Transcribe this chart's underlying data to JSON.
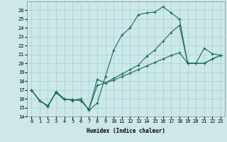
{
  "xlabel": "Humidex (Indice chaleur)",
  "xlim": [
    -0.5,
    23.5
  ],
  "ylim": [
    14,
    27
  ],
  "yticks": [
    14,
    15,
    16,
    17,
    18,
    19,
    20,
    21,
    22,
    23,
    24,
    25,
    26
  ],
  "xticks": [
    0,
    1,
    2,
    3,
    4,
    5,
    6,
    7,
    8,
    9,
    10,
    11,
    12,
    13,
    14,
    15,
    16,
    17,
    18,
    19,
    20,
    21,
    22,
    23
  ],
  "background_color": "#cce8e8",
  "grid_color": "#aacece",
  "line_color": "#1a6b5a",
  "line1_x": [
    0,
    1,
    2,
    3,
    4,
    5,
    6,
    7,
    8,
    9,
    10,
    11,
    12,
    13,
    14,
    15,
    16,
    17,
    18,
    19,
    20,
    21,
    22,
    23
  ],
  "line1_y": [
    17.0,
    15.8,
    15.1,
    16.8,
    16.0,
    15.8,
    16.0,
    14.7,
    15.5,
    18.5,
    21.5,
    23.2,
    24.0,
    25.5,
    25.7,
    25.8,
    26.4,
    25.7,
    25.0,
    20.0,
    20.0,
    21.7,
    21.1,
    20.9
  ],
  "line2_x": [
    0,
    1,
    2,
    3,
    4,
    5,
    6,
    7,
    8,
    9,
    10,
    11,
    12,
    13,
    14,
    15,
    16,
    17,
    18,
    19,
    20,
    21,
    22,
    23
  ],
  "line2_y": [
    17.0,
    15.8,
    15.2,
    16.7,
    15.9,
    15.9,
    15.8,
    14.8,
    18.2,
    17.8,
    18.3,
    18.8,
    19.3,
    19.8,
    20.8,
    21.5,
    22.5,
    23.5,
    24.3,
    20.0,
    20.0,
    20.0,
    20.5,
    20.9
  ],
  "line3_x": [
    0,
    1,
    2,
    3,
    4,
    5,
    6,
    7,
    8,
    9,
    10,
    11,
    12,
    13,
    14,
    15,
    16,
    17,
    18,
    19,
    20,
    21,
    22,
    23
  ],
  "line3_y": [
    17.0,
    15.8,
    15.2,
    16.7,
    15.9,
    15.9,
    15.8,
    14.8,
    17.5,
    17.8,
    18.1,
    18.5,
    18.9,
    19.3,
    19.7,
    20.1,
    20.5,
    20.9,
    21.2,
    20.0,
    20.0,
    20.0,
    20.5,
    20.9
  ]
}
